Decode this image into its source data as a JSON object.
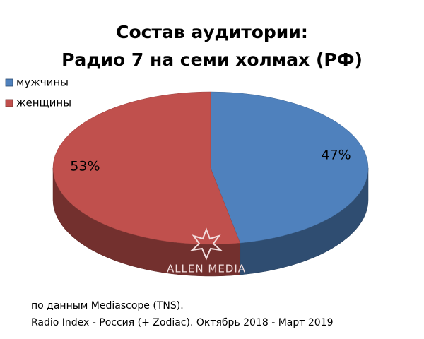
{
  "chart_data": {
    "type": "pie3d",
    "title": [
      "Состав аудитории:",
      "Радио 7 на семи холмах (РФ)"
    ],
    "categories": [
      "мужчины",
      "женщины"
    ],
    "values": [
      47,
      53
    ],
    "value_labels": [
      "47%",
      "53%"
    ],
    "colors": [
      "#4f81bd",
      "#c0504d"
    ],
    "legend": "top-left",
    "watermark": "ALLEN MEDIA",
    "source": [
      "по данным Mediascope (TNS).",
      "Radio Index - Россия (+ Zodiac). Октябрь 2018 - Март 2019"
    ]
  }
}
